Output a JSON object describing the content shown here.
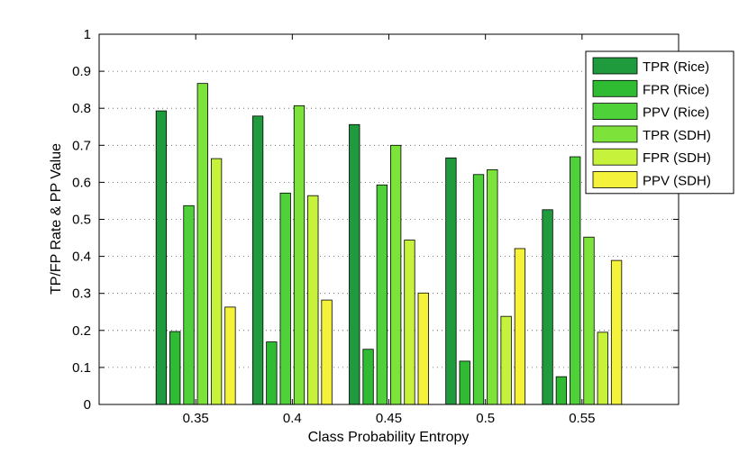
{
  "chart_data": {
    "type": "bar",
    "title": "",
    "xlabel": "Class Probability Entropy",
    "ylabel": "TP/FP Rate & PP Value",
    "categories": [
      "0.35",
      "0.4",
      "0.45",
      "0.5",
      "0.55"
    ],
    "ylim": [
      0,
      1
    ],
    "yticks": [
      "0",
      "0.1",
      "0.2",
      "0.3",
      "0.4",
      "0.5",
      "0.6",
      "0.7",
      "0.8",
      "0.9",
      "1"
    ],
    "grid": "horizontal dotted",
    "legend_position": "top-right",
    "series": [
      {
        "name": "TPR (Rice)",
        "color": "#1f9a3c",
        "values": [
          0.793,
          0.779,
          0.756,
          0.666,
          0.526
        ]
      },
      {
        "name": "FPR (Rice)",
        "color": "#2fbb32",
        "values": [
          0.197,
          0.169,
          0.149,
          0.117,
          0.075
        ]
      },
      {
        "name": "PPV (Rice)",
        "color": "#4fd13a",
        "values": [
          0.537,
          0.571,
          0.593,
          0.621,
          0.669
        ]
      },
      {
        "name": "TPR (SDH)",
        "color": "#7de33a",
        "values": [
          0.867,
          0.807,
          0.7,
          0.634,
          0.452
        ]
      },
      {
        "name": "FPR (SDH)",
        "color": "#c6f23b",
        "values": [
          0.664,
          0.564,
          0.444,
          0.238,
          0.195
        ]
      },
      {
        "name": "PPV (SDH)",
        "color": "#f4f23b",
        "values": [
          0.263,
          0.282,
          0.301,
          0.421,
          0.389
        ]
      }
    ]
  }
}
